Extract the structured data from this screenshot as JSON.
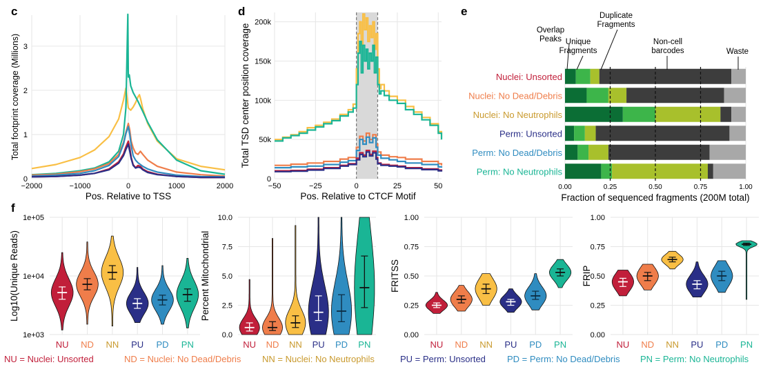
{
  "panels": {
    "c": "c",
    "d": "d",
    "e": "e",
    "f": "f"
  },
  "chart_data": [
    {
      "id": "c",
      "type": "line",
      "xlabel": "Pos. Relative to TSS",
      "ylabel": "Total footprint coverage (Millions)",
      "xlim": [
        -2000,
        2000
      ],
      "ylim": [
        0,
        3.7
      ],
      "xticks": [
        -2000,
        -1000,
        0,
        1000,
        2000
      ],
      "xtick_labels": [
        "−2000",
        "−1000",
        "0",
        "1000",
        "2000"
      ],
      "yticks": [
        0,
        1,
        2,
        3
      ],
      "grid": true,
      "series": [
        {
          "color": "#f9bf45",
          "x": [
            -2000,
            -1500,
            -1000,
            -700,
            -400,
            -200,
            -100,
            -50,
            0,
            50,
            100,
            150,
            200,
            230,
            260,
            300,
            400,
            600,
            1000,
            1500,
            2000
          ],
          "y": [
            0.23,
            0.32,
            0.48,
            0.65,
            0.95,
            1.35,
            1.78,
            2.05,
            1.6,
            1.55,
            1.62,
            1.72,
            1.85,
            1.9,
            1.78,
            1.58,
            1.25,
            0.85,
            0.45,
            0.28,
            0.2
          ]
        },
        {
          "color": "#1ab595",
          "x": [
            -2000,
            -1500,
            -1000,
            -700,
            -400,
            -200,
            -100,
            -50,
            -10,
            0,
            20,
            50,
            100,
            200,
            300,
            400,
            600,
            1000,
            1500,
            2000
          ],
          "y": [
            0.09,
            0.12,
            0.18,
            0.24,
            0.38,
            0.62,
            1.0,
            1.6,
            3.72,
            2.3,
            2.35,
            2.1,
            1.95,
            1.75,
            1.52,
            1.28,
            0.88,
            0.42,
            0.18,
            0.1
          ]
        },
        {
          "color": "#ef7d4a",
          "x": [
            -2000,
            -1500,
            -1000,
            -700,
            -400,
            -200,
            -100,
            -50,
            0,
            30,
            60,
            100,
            150,
            200,
            250,
            300,
            400,
            600,
            1000,
            1500,
            2000
          ],
          "y": [
            0.08,
            0.1,
            0.16,
            0.22,
            0.34,
            0.55,
            0.82,
            1.05,
            1.25,
            1.1,
            0.85,
            0.7,
            0.58,
            0.55,
            0.62,
            0.55,
            0.42,
            0.28,
            0.15,
            0.09,
            0.06
          ]
        },
        {
          "color": "#2f8cc0",
          "x": [
            -2000,
            -1500,
            -1000,
            -700,
            -400,
            -200,
            -100,
            -50,
            0,
            30,
            60,
            100,
            150,
            200,
            300,
            400,
            600,
            1000,
            1500,
            2000
          ],
          "y": [
            0.06,
            0.08,
            0.12,
            0.18,
            0.3,
            0.5,
            0.78,
            1.02,
            1.18,
            1.0,
            0.75,
            0.52,
            0.42,
            0.36,
            0.28,
            0.22,
            0.15,
            0.08,
            0.05,
            0.04
          ]
        },
        {
          "color": "#c11f3a",
          "x": [
            -2000,
            -1500,
            -1000,
            -700,
            -400,
            -200,
            -100,
            -50,
            0,
            30,
            60,
            100,
            150,
            200,
            250,
            300,
            400,
            600,
            1000,
            1500,
            2000
          ],
          "y": [
            0.04,
            0.05,
            0.08,
            0.12,
            0.22,
            0.38,
            0.56,
            0.72,
            0.85,
            0.7,
            0.48,
            0.32,
            0.25,
            0.3,
            0.28,
            0.22,
            0.16,
            0.1,
            0.05,
            0.03,
            0.03
          ]
        },
        {
          "color": "#2a2f87",
          "x": [
            -2000,
            -1500,
            -1000,
            -700,
            -400,
            -200,
            -100,
            -50,
            0,
            30,
            60,
            100,
            150,
            200,
            250,
            300,
            400,
            600,
            1000,
            1500,
            2000
          ],
          "y": [
            0.04,
            0.05,
            0.08,
            0.12,
            0.2,
            0.35,
            0.52,
            0.66,
            0.78,
            0.62,
            0.45,
            0.3,
            0.24,
            0.26,
            0.25,
            0.2,
            0.14,
            0.09,
            0.05,
            0.03,
            0.03
          ]
        }
      ]
    },
    {
      "id": "d",
      "type": "line",
      "xlabel": "Pos. Relative to CTCF Motif",
      "ylabel": "Total TSD center position coverage",
      "xlim": [
        -50,
        52
      ],
      "ylim": [
        0,
        212000
      ],
      "xticks": [
        -50,
        -25,
        0,
        25,
        50
      ],
      "xtick_labels": [
        "−50",
        "−25",
        "0",
        "25",
        "50"
      ],
      "yticks": [
        0,
        50000,
        100000,
        150000,
        200000
      ],
      "ytick_labels": [
        "0",
        "50k",
        "100k",
        "150k",
        "200k"
      ],
      "shaded_region": [
        0,
        13
      ],
      "dashed_lines": [
        0,
        13
      ],
      "grid": true,
      "series": [
        {
          "color": "#f9bf45",
          "x": [
            -50,
            -45,
            -40,
            -35,
            -30,
            -25,
            -20,
            -15,
            -10,
            -5,
            -2,
            0,
            1,
            2,
            3,
            4,
            5,
            6,
            7,
            8,
            9,
            10,
            11,
            12,
            13,
            14,
            15,
            17,
            20,
            25,
            30,
            35,
            40,
            45,
            50,
            52
          ],
          "y": [
            50000,
            53000,
            56000,
            60000,
            65000,
            68000,
            72000,
            76000,
            82000,
            88000,
            95000,
            140000,
            185000,
            200000,
            170000,
            210000,
            190000,
            205000,
            175000,
            195000,
            180000,
            200000,
            165000,
            185000,
            140000,
            115000,
            120000,
            112000,
            105000,
            100000,
            92000,
            85000,
            78000,
            70000,
            60000,
            52000
          ]
        },
        {
          "color": "#1ab595",
          "x": [
            -50,
            -45,
            -40,
            -35,
            -30,
            -25,
            -20,
            -15,
            -10,
            -5,
            -2,
            0,
            1,
            2,
            3,
            4,
            5,
            6,
            7,
            8,
            9,
            10,
            11,
            12,
            13,
            14,
            15,
            17,
            20,
            25,
            30,
            35,
            40,
            45,
            50,
            52
          ],
          "y": [
            48000,
            52000,
            55000,
            58000,
            62000,
            66000,
            70000,
            74000,
            80000,
            85000,
            90000,
            120000,
            160000,
            175000,
            135000,
            170000,
            150000,
            165000,
            140000,
            160000,
            150000,
            170000,
            135000,
            155000,
            120000,
            108000,
            112000,
            106000,
            100000,
            96000,
            88000,
            82000,
            75000,
            68000,
            58000,
            50000
          ]
        },
        {
          "color": "#ef7d4a",
          "x": [
            -50,
            -40,
            -30,
            -20,
            -10,
            -5,
            0,
            2,
            4,
            6,
            8,
            10,
            12,
            13,
            15,
            20,
            25,
            30,
            40,
            50,
            52
          ],
          "y": [
            17000,
            18500,
            20000,
            22000,
            25000,
            27000,
            40000,
            54000,
            48000,
            58000,
            50000,
            56000,
            44000,
            34000,
            30000,
            28000,
            27000,
            25000,
            22000,
            19000,
            17000
          ]
        },
        {
          "color": "#2f8cc0",
          "x": [
            -50,
            -40,
            -30,
            -20,
            -10,
            -5,
            0,
            2,
            4,
            6,
            8,
            10,
            12,
            13,
            15,
            20,
            25,
            30,
            40,
            50,
            52
          ],
          "y": [
            14000,
            15000,
            16000,
            18000,
            21000,
            23000,
            36000,
            50000,
            44000,
            53000,
            46000,
            52000,
            40000,
            30000,
            26000,
            24000,
            22000,
            20000,
            18000,
            15000,
            14000
          ]
        },
        {
          "color": "#c11f3a",
          "x": [
            -50,
            -40,
            -30,
            -20,
            -10,
            -5,
            0,
            2,
            4,
            6,
            8,
            10,
            12,
            13,
            15,
            20,
            25,
            30,
            40,
            50,
            52
          ],
          "y": [
            10000,
            10500,
            12000,
            14000,
            17000,
            19000,
            26000,
            33000,
            30000,
            36000,
            31000,
            35000,
            27000,
            20000,
            18000,
            17000,
            16000,
            14000,
            12500,
            11000,
            10000
          ]
        },
        {
          "color": "#2a2f87",
          "x": [
            -50,
            -40,
            -30,
            -20,
            -10,
            -5,
            0,
            2,
            4,
            6,
            8,
            10,
            12,
            13,
            15,
            20,
            25,
            30,
            40,
            50,
            52
          ],
          "y": [
            9000,
            9500,
            11000,
            13000,
            16000,
            18000,
            24000,
            31000,
            28000,
            34000,
            29000,
            33000,
            25000,
            19000,
            17000,
            16000,
            15000,
            13000,
            11500,
            10000,
            9000
          ]
        }
      ]
    },
    {
      "id": "e",
      "type": "bar",
      "orientation": "horizontal",
      "stacked": true,
      "xlabel": "Fraction of sequenced fragments (200M total)",
      "xlim": [
        0,
        1
      ],
      "xticks": [
        0,
        0.25,
        0.5,
        0.75,
        1
      ],
      "xtick_labels": [
        "0.00",
        "0.25",
        "0.50",
        "0.75",
        "1.00"
      ],
      "dashed_lines": [
        0.25,
        0.5,
        0.75
      ],
      "categories": [
        "Nuclei: Unsorted",
        "Nuclei: No Dead/Debris",
        "Nuclei: No Neutrophils",
        "Perm: Unsorted",
        "Perm: No Dead/Debris",
        "Perm: No Neutrophils"
      ],
      "category_colors": [
        "#c11f3a",
        "#ef7d4a",
        "#c99a2e",
        "#2a2f87",
        "#2f8cc0",
        "#1ab595"
      ],
      "segment_colors": [
        "#0b6e35",
        "#3db54a",
        "#a8c02c",
        "#3d3d3d",
        "#a8a8a8"
      ],
      "series": [
        {
          "name": "Overlap Peaks",
          "values": [
            0.06,
            0.12,
            0.32,
            0.05,
            0.07,
            0.2
          ]
        },
        {
          "name": "Unique Fragments",
          "values": [
            0.08,
            0.12,
            0.18,
            0.06,
            0.06,
            0.06
          ]
        },
        {
          "name": "Duplicate Fragments",
          "values": [
            0.05,
            0.1,
            0.36,
            0.06,
            0.11,
            0.53
          ]
        },
        {
          "name": "Non-cell barcodes",
          "values": [
            0.73,
            0.54,
            0.06,
            0.74,
            0.56,
            0.03
          ]
        },
        {
          "name": "Waste",
          "values": [
            0.08,
            0.12,
            0.08,
            0.09,
            0.2,
            0.18
          ]
        }
      ],
      "annotations": [
        "Overlap\nPeaks",
        "Unique\nFragments",
        "Duplicate\nFragments",
        "Non-cell\nbarcodes",
        "Waste"
      ]
    },
    {
      "id": "f1",
      "type": "violin",
      "ylabel": "Log10(Unique Reads)",
      "yscale": "log",
      "ylim": [
        1000,
        100000
      ],
      "yticks": [
        1000,
        10000,
        100000
      ],
      "ytick_labels": [
        "1e+03",
        "1e+04",
        "1e+05"
      ],
      "categories": [
        "NU",
        "ND",
        "NN",
        "PU",
        "PD",
        "PN"
      ],
      "colors": [
        "#c11f3a",
        "#ef7d4a",
        "#f9bf45",
        "#2a2f87",
        "#2f8cc0",
        "#1ab595"
      ],
      "medians": [
        5200,
        7200,
        11500,
        3400,
        3900,
        4800
      ],
      "q1": [
        4000,
        5800,
        8800,
        2800,
        3200,
        3700
      ],
      "q3": [
        6500,
        9000,
        15000,
        4100,
        4700,
        6000
      ],
      "min": [
        1200,
        1500,
        1400,
        1600,
        1500,
        1300
      ],
      "max": [
        25000,
        38000,
        48000,
        14000,
        15000,
        20000
      ]
    },
    {
      "id": "f2",
      "type": "violin",
      "ylabel": "Percent Mitochondrial",
      "ylim": [
        0,
        10
      ],
      "yticks": [
        0,
        2.5,
        5,
        7.5,
        10
      ],
      "ytick_labels": [
        "0.0",
        "2.5",
        "5.0",
        "7.5",
        "10.0"
      ],
      "categories": [
        "NU",
        "ND",
        "NN",
        "PU",
        "PD",
        "PN"
      ],
      "colors": [
        "#c11f3a",
        "#ef7d4a",
        "#f9bf45",
        "#2a2f87",
        "#2f8cc0",
        "#1ab595"
      ],
      "medians": [
        0.6,
        0.6,
        1.0,
        1.9,
        2.0,
        4.0
      ],
      "q1": [
        0.3,
        0.35,
        0.6,
        1.2,
        1.1,
        2.3
      ],
      "q3": [
        1.0,
        1.1,
        1.6,
        3.3,
        3.4,
        6.7
      ],
      "min": [
        0.0,
        0.0,
        0.0,
        0.0,
        0.0,
        0.0
      ],
      "max": [
        4.7,
        8.2,
        9.3,
        10.0,
        10.0,
        10.0
      ]
    },
    {
      "id": "f3",
      "type": "violin",
      "ylabel": "FRITSS",
      "ylim": [
        0,
        1
      ],
      "yticks": [
        0,
        0.25,
        0.5,
        0.75,
        1
      ],
      "ytick_labels": [
        "0.00",
        "0.25",
        "0.50",
        "0.75",
        "1.00"
      ],
      "categories": [
        "NU",
        "ND",
        "NN",
        "PU",
        "PD",
        "PN"
      ],
      "colors": [
        "#c11f3a",
        "#ef7d4a",
        "#f9bf45",
        "#2a2f87",
        "#2f8cc0",
        "#1ab595"
      ],
      "medians": [
        0.25,
        0.3,
        0.39,
        0.28,
        0.33,
        0.53
      ],
      "q1": [
        0.23,
        0.27,
        0.35,
        0.25,
        0.3,
        0.5
      ],
      "q3": [
        0.27,
        0.33,
        0.43,
        0.3,
        0.37,
        0.56
      ],
      "min": [
        0.18,
        0.2,
        0.25,
        0.19,
        0.21,
        0.4
      ],
      "max": [
        0.36,
        0.42,
        0.52,
        0.39,
        0.52,
        0.64
      ]
    },
    {
      "id": "f4",
      "type": "violin",
      "ylabel": "FRIP",
      "ylim": [
        0,
        1
      ],
      "yticks": [
        0,
        0.25,
        0.5,
        0.75,
        1
      ],
      "ytick_labels": [
        "0.00",
        "0.25",
        "0.50",
        "0.75",
        "1.00"
      ],
      "categories": [
        "NU",
        "ND",
        "NN",
        "PU",
        "PD",
        "PN"
      ],
      "colors": [
        "#c11f3a",
        "#ef7d4a",
        "#f9bf45",
        "#2a2f87",
        "#2f8cc0",
        "#1ab595"
      ],
      "medians": [
        0.45,
        0.5,
        0.64,
        0.43,
        0.5,
        0.77
      ],
      "q1": [
        0.41,
        0.46,
        0.62,
        0.39,
        0.46,
        0.76
      ],
      "q3": [
        0.48,
        0.53,
        0.66,
        0.46,
        0.54,
        0.78
      ],
      "min": [
        0.33,
        0.38,
        0.56,
        0.32,
        0.36,
        0.3
      ],
      "max": [
        0.55,
        0.6,
        0.71,
        0.62,
        0.63,
        0.8
      ]
    }
  ],
  "legend": [
    {
      "text": "NU = Nuclei: Unsorted",
      "color": "#c11f3a"
    },
    {
      "text": "ND = Nuclei: No Dead/Debris",
      "color": "#ef7d4a"
    },
    {
      "text": "NN = Nuclei: No Neutrophils",
      "color": "#c99a2e"
    },
    {
      "text": "PU = Perm: Unsorted",
      "color": "#2a2f87"
    },
    {
      "text": "PD = Perm: No Dead/Debris",
      "color": "#2f8cc0"
    },
    {
      "text": "PN = Perm: No Neutrophils",
      "color": "#1ab595"
    }
  ]
}
